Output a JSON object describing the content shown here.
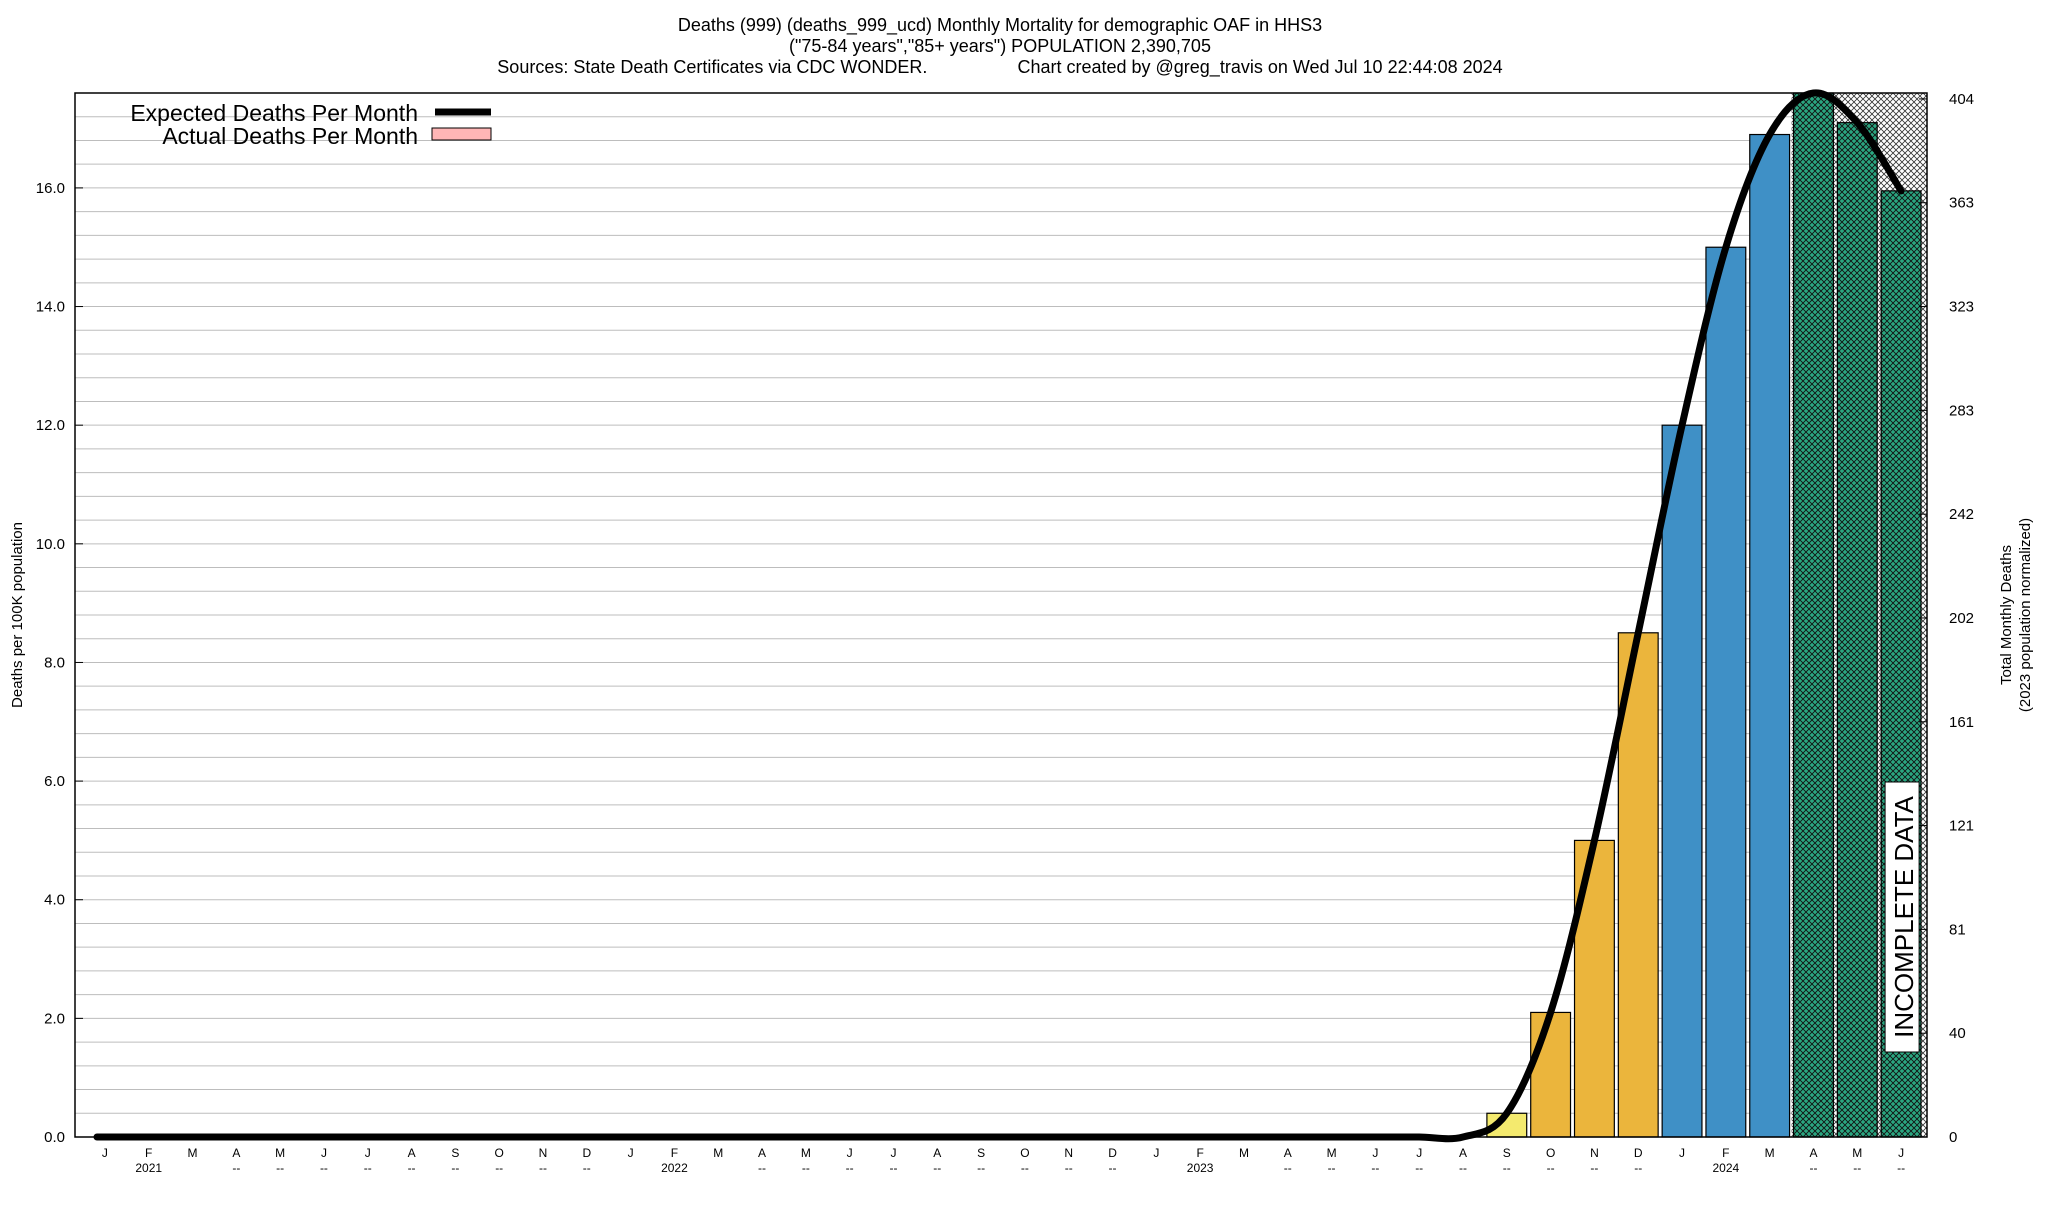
{
  "chart_data": {
    "type": "bar",
    "title_lines": [
      "Deaths (999) (deaths_999_ucd) Monthly Mortality for demographic OAF in HHS3",
      "(\"75-84 years\",\"85+ years\") POPULATION 2,390,705",
      "Sources: State Death Certificates via CDC WONDER.                  Chart created by @greg_travis on Wed Jul 10 22:44:08 2024"
    ],
    "ylabel_left": "Deaths per 100K population",
    "ylabel_right_lines": [
      "Total Monthly Deaths",
      "(2023 population normalized)"
    ],
    "ylim": [
      0,
      17.6
    ],
    "left_ticks": [
      "0.0",
      "2.0",
      "4.0",
      "6.0",
      "8.0",
      "10.0",
      "12.0",
      "14.0",
      "16.0"
    ],
    "left_tick_values": [
      0,
      2,
      4,
      6,
      8,
      10,
      12,
      14,
      16
    ],
    "right_ticks": [
      "0",
      "40",
      "81",
      "121",
      "161",
      "202",
      "242",
      "283",
      "323",
      "363",
      "404"
    ],
    "right_tick_values": [
      0,
      1.75,
      3.5,
      5.25,
      7.0,
      8.75,
      10.5,
      12.25,
      14.0,
      15.75,
      17.5
    ],
    "categories": [
      "J",
      "F",
      "M",
      "A",
      "M",
      "J",
      "J",
      "A",
      "S",
      "O",
      "N",
      "D",
      "J",
      "F",
      "M",
      "A",
      "M",
      "J",
      "J",
      "A",
      "S",
      "O",
      "N",
      "D",
      "J",
      "F",
      "M",
      "A",
      "M",
      "J",
      "J",
      "A",
      "S",
      "O",
      "N",
      "D",
      "J",
      "F",
      "M",
      "A",
      "M",
      "J"
    ],
    "second_row_labels": [
      "",
      "2021",
      "",
      "--",
      "--",
      "--",
      "--",
      "--",
      "--",
      "--",
      "--",
      "--",
      "",
      "2022",
      "",
      "--",
      "--",
      "--",
      "--",
      "--",
      "--",
      "--",
      "--",
      "--",
      "",
      "2023",
      "",
      "--",
      "--",
      "--",
      "--",
      "--",
      "--",
      "--",
      "--",
      "--",
      "",
      "2024",
      "",
      "--",
      "--",
      "--"
    ],
    "series": [
      {
        "name": "Actual Deaths Per Month",
        "values": [
          0,
          0,
          0,
          0,
          0,
          0,
          0,
          0,
          0,
          0,
          0,
          0,
          0,
          0,
          0,
          0,
          0,
          0,
          0,
          0,
          0,
          0,
          0,
          0,
          0,
          0,
          0,
          0,
          0,
          0,
          0,
          0,
          0.4,
          2.1,
          5.0,
          8.5,
          12.0,
          15.0,
          16.9,
          17.6,
          17.1,
          15.95
        ]
      },
      {
        "name": "Expected Deaths Per Month",
        "values": [
          0,
          0,
          0,
          0,
          0,
          0,
          0,
          0,
          0,
          0,
          0,
          0,
          0,
          0,
          0,
          0,
          0,
          0,
          0,
          0,
          0,
          0,
          0,
          0,
          0,
          0,
          0,
          0,
          0,
          0,
          0,
          0,
          0.4,
          2.1,
          5.0,
          8.5,
          12.0,
          15.0,
          16.9,
          17.6,
          17.1,
          15.95
        ]
      }
    ],
    "expected_peak": 17.6,
    "expected_end": 15.95,
    "bar_colors": [
      "#ffffff",
      "#ffffff",
      "#ffffff",
      "#ffffff",
      "#ffffff",
      "#ffffff",
      "#ffffff",
      "#ffffff",
      "#ffffff",
      "#ffffff",
      "#ffffff",
      "#ffffff",
      "#ffffff",
      "#ffffff",
      "#ffffff",
      "#ffffff",
      "#ffffff",
      "#ffffff",
      "#ffffff",
      "#ffffff",
      "#ffffff",
      "#ffffff",
      "#ffffff",
      "#ffffff",
      "#ffffff",
      "#ffffff",
      "#ffffff",
      "#ffffff",
      "#ffffff",
      "#ffffff",
      "#ffffff",
      "#ffffff",
      "#f4ea6e",
      "#ebb53c",
      "#ebb53c",
      "#ebb53c",
      "#3f90c6",
      "#3f90c6",
      "#3f90c6",
      "#2aa680",
      "#2aa680",
      "#2aa680"
    ],
    "incomplete_months": [
      39,
      40,
      41
    ],
    "incomplete_label": "INCOMPLETE DATA",
    "legend": {
      "position": "top-left",
      "expected_label": "Expected Deaths Per Month",
      "actual_label": "Actual Deaths Per Month",
      "expected_color": "#000000",
      "actual_color": "#ffb6b6"
    },
    "grid": true
  }
}
